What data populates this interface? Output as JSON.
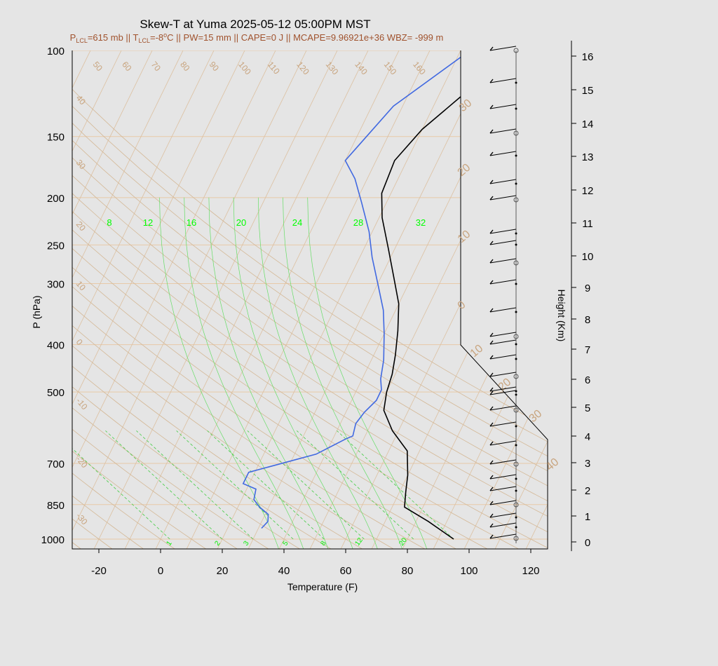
{
  "chart_data": {
    "type": "line",
    "title": "Skew-T at Yuma 2025-05-12 05:00PM MST",
    "subtitle": {
      "p_prefix": "P",
      "lcl1": "LCL",
      "p_value": "=615 mb || T",
      "lcl2": "LCL",
      "t_value": "=-8",
      "deg": "o",
      "rest": "C || PW=15 mm || CAPE=0 J || MCAPE=9.96921e+36 WBZ= -999 m"
    },
    "xlabel": "Temperature (F)",
    "ylabel": "P (hPa)",
    "y2label": "Height (Km)",
    "x_ticks": [
      -20,
      0,
      20,
      40,
      60,
      80,
      100,
      120
    ],
    "p_ticks": [
      100,
      150,
      200,
      250,
      300,
      400,
      500,
      700,
      850,
      1000
    ],
    "height_ticks": [
      0,
      1,
      2,
      3,
      4,
      5,
      6,
      7,
      8,
      9,
      10,
      11,
      12,
      13,
      14,
      15,
      16
    ],
    "dry_adiabat_labels": [
      50,
      60,
      70,
      80,
      90,
      100,
      110,
      120,
      130,
      140,
      150,
      160
    ],
    "dry_adiabat_left_labels": [
      40,
      30,
      20,
      10,
      0,
      -10,
      -20,
      -30
    ],
    "isotherm_labels": [
      30,
      20,
      10,
      0,
      10,
      20,
      30,
      40
    ],
    "mixing_ratio_top": [
      8,
      12,
      16,
      20,
      24,
      28,
      32
    ],
    "mixing_ratio_bottom": [
      1,
      2,
      3,
      5,
      8,
      12,
      20
    ],
    "series": [
      {
        "name": "Temperature",
        "points": [
          [
            95,
            1000
          ],
          [
            84,
            920
          ],
          [
            74,
            860
          ],
          [
            72,
            800
          ],
          [
            70,
            740
          ],
          [
            66,
            660
          ],
          [
            58,
            600
          ],
          [
            52,
            545
          ],
          [
            50,
            500
          ],
          [
            49,
            460
          ],
          [
            47,
            420
          ],
          [
            44,
            375
          ],
          [
            40,
            330
          ],
          [
            34,
            290
          ],
          [
            28,
            255
          ],
          [
            21,
            220
          ],
          [
            17,
            196
          ],
          [
            16,
            168
          ],
          [
            20,
            145
          ],
          [
            29,
            120
          ],
          [
            38,
            100
          ]
        ]
      },
      {
        "name": "Dewpoint",
        "points": [
          [
            31,
            950
          ],
          [
            32,
            920
          ],
          [
            31,
            890
          ],
          [
            27,
            860
          ],
          [
            24,
            830
          ],
          [
            23,
            790
          ],
          [
            18,
            770
          ],
          [
            18,
            730
          ],
          [
            37,
            670
          ],
          [
            44,
            625
          ],
          [
            46,
            615
          ],
          [
            45,
            580
          ],
          [
            46,
            550
          ],
          [
            48,
            520
          ],
          [
            48,
            495
          ],
          [
            46,
            470
          ],
          [
            44,
            430
          ],
          [
            40,
            380
          ],
          [
            36,
            340
          ],
          [
            30,
            300
          ],
          [
            24,
            265
          ],
          [
            19,
            235
          ],
          [
            12,
            205
          ],
          [
            6,
            183
          ],
          [
            0,
            168
          ],
          [
            7,
            130
          ],
          [
            23,
            100
          ]
        ]
      }
    ],
    "wind_heights": [
      16.1,
      15.1,
      14.1,
      13.1,
      12.1,
      11.1,
      10.1,
      9.1,
      8.2,
      7.4,
      6.6,
      5.9,
      5.3,
      4.8,
      4.3,
      3.8,
      3.3,
      2.9,
      2.5,
      2.1,
      1.8,
      1.5,
      1.2,
      0.9,
      0.6,
      0.3,
      0.15,
      0.05
    ],
    "xlim": [
      -28,
      125
    ],
    "plim": [
      1050,
      100
    ]
  }
}
